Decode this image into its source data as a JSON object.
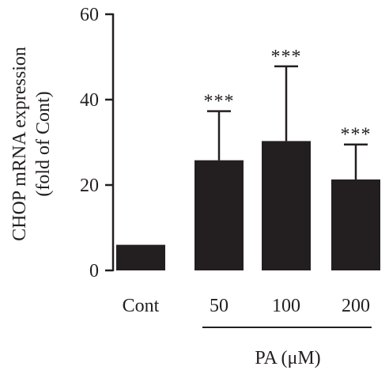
{
  "chart_data": {
    "type": "bar",
    "categories": [
      "Cont",
      "50",
      "100",
      "200"
    ],
    "values": [
      6,
      25.8,
      30.3,
      21.3
    ],
    "error": [
      0,
      11.5,
      17.5,
      8.2
    ],
    "significance": [
      "",
      "***",
      "***",
      "***"
    ],
    "ylabel_line1": "CHOP mRNA expression",
    "ylabel_line2": "(fold of Cont)",
    "xlabel": "PA (μM)",
    "xgroup_label": "PA (μM)",
    "ylim": [
      0,
      60
    ],
    "yticks": [
      0,
      20,
      40,
      60
    ],
    "yticklabels": [
      "0",
      "20",
      "40",
      "60"
    ],
    "grid": false,
    "legend": "none",
    "bar_color": "#231f20"
  }
}
